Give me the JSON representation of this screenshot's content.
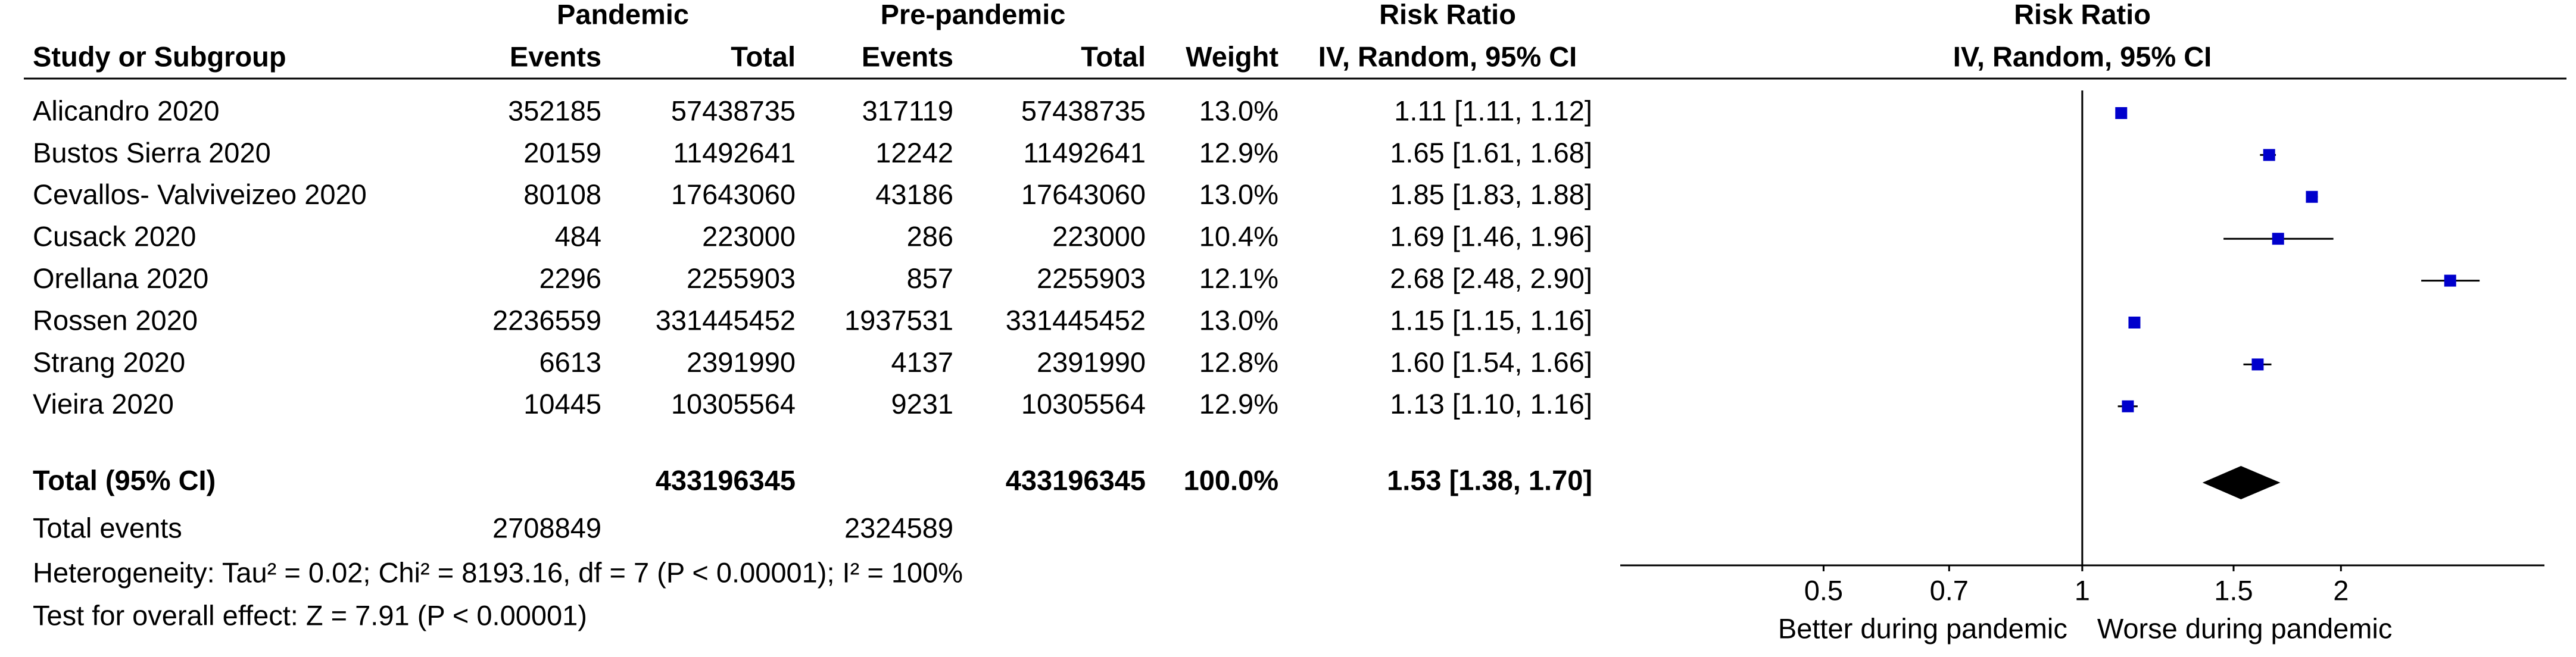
{
  "chart_data": {
    "type": "forest",
    "group_headers": [
      "Pandemic",
      "Pre-pandemic",
      "Risk Ratio",
      "Risk Ratio"
    ],
    "column_headers": [
      "Study or Subgroup",
      "Events",
      "Total",
      "Events",
      "Total",
      "Weight",
      "IV, Random, 95% CI",
      "IV, Random, 95% CI"
    ],
    "rows": [
      [
        "Alicandro 2020",
        352185,
        57438735,
        317119,
        57438735,
        "13.0%"
      ],
      [
        "Bustos Sierra 2020",
        20159,
        11492641,
        12242,
        11492641,
        "12.9%"
      ],
      [
        "Cevallos- Valviveizeo 2020",
        80108,
        17643060,
        43186,
        17643060,
        "13.0%"
      ],
      [
        "Cusack 2020",
        484,
        223000,
        286,
        223000,
        "10.4%"
      ],
      [
        "Orellana 2020",
        2296,
        2255903,
        857,
        2255903,
        "12.1%"
      ],
      [
        "Rossen 2020",
        2236559,
        331445452,
        1937531,
        331445452,
        "13.0%"
      ],
      [
        "Strang 2020",
        6613,
        2391990,
        4137,
        2391990,
        "12.8%"
      ],
      [
        "Vieira 2020",
        10445,
        10305564,
        9231,
        10305564,
        "12.9%"
      ]
    ],
    "values": [
      1.11,
      1.65,
      1.85,
      1.69,
      2.68,
      1.15,
      1.6,
      1.13
    ],
    "ci_low": [
      1.11,
      1.61,
      1.83,
      1.46,
      2.48,
      1.15,
      1.54,
      1.1
    ],
    "ci_high": [
      1.12,
      1.68,
      1.88,
      1.96,
      2.9,
      1.16,
      1.66,
      1.16
    ],
    "value_labels": [
      "1.11 [1.11, 1.12]",
      "1.65 [1.61, 1.68]",
      "1.85 [1.83, 1.88]",
      "1.69 [1.46, 1.96]",
      "2.68 [2.48, 2.90]",
      "1.15 [1.15, 1.16]",
      "1.60 [1.54, 1.66]",
      "1.13 [1.10, 1.16]"
    ],
    "total": {
      "label": "Total (95% CI)",
      "total1": 433196345,
      "total2": 433196345,
      "weight": "100.0%",
      "value": 1.53,
      "ci_low": 1.38,
      "ci_high": 1.7,
      "value_label": "1.53 [1.38, 1.70]"
    },
    "total_events": {
      "label": "Total events",
      "events1": 2708849,
      "events2": 2324589
    },
    "heterogeneity": "Heterogeneity: Tau² = 0.02; Chi² = 8193.16, df = 7 (P < 0.00001); I² = 100%",
    "overall_effect": "Test for overall effect: Z = 7.91 (P < 0.00001)",
    "log_scale": true,
    "xlim": [
      0.29,
      3.45
    ],
    "xticks": [
      0.5,
      0.7,
      1,
      1.5,
      2
    ],
    "x_labels": [
      "Better during pandemic",
      "Worse during pandemic"
    ],
    "color": "#0000cc"
  }
}
